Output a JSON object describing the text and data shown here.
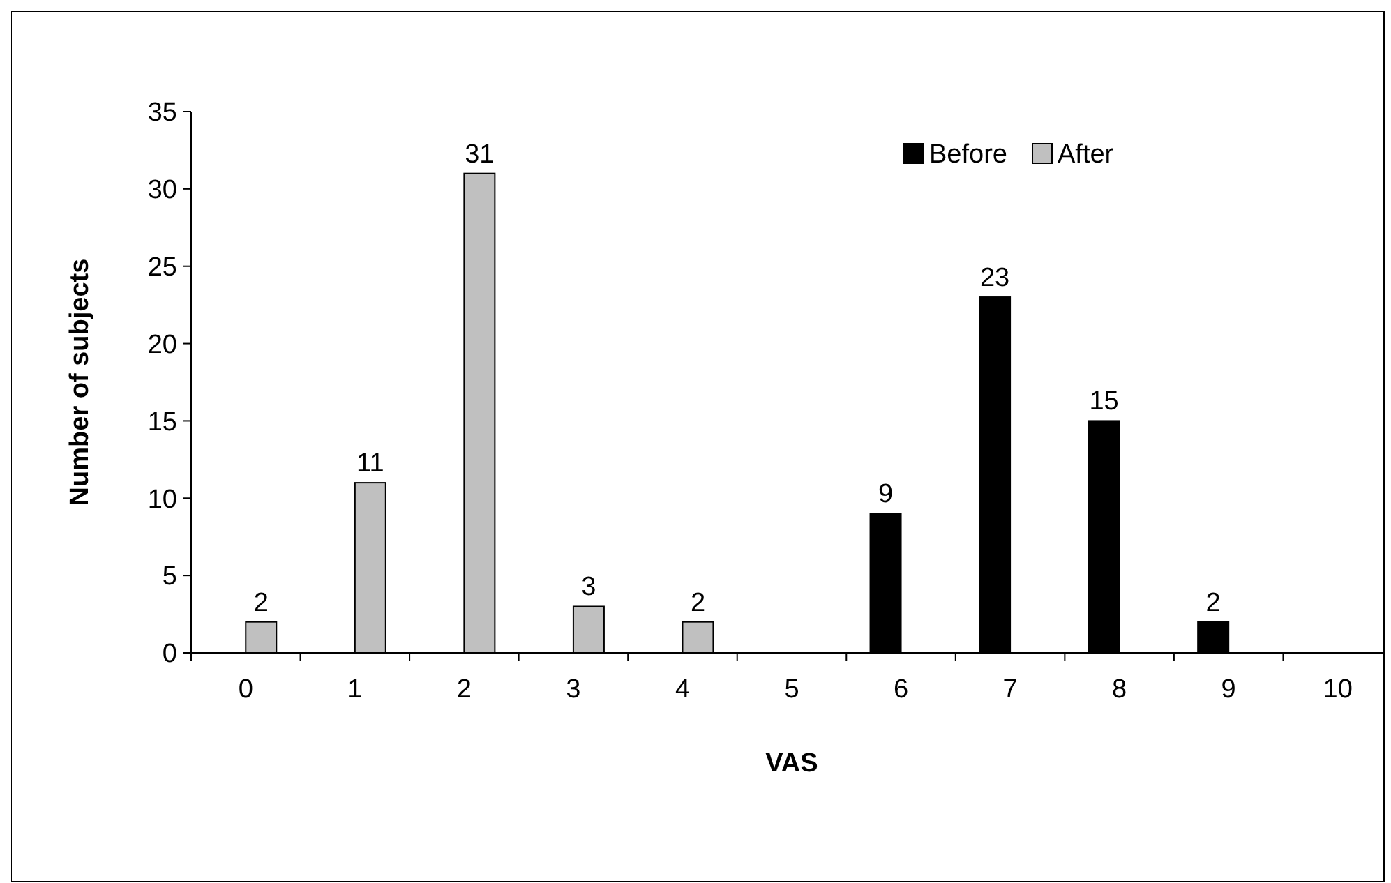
{
  "chart_data": {
    "type": "bar",
    "xlabel": "VAS",
    "ylabel": "Number of subjects",
    "categories": [
      "0",
      "1",
      "2",
      "3",
      "4",
      "5",
      "6",
      "7",
      "8",
      "9",
      "10"
    ],
    "series": [
      {
        "name": "Before",
        "color": "#000000",
        "values": [
          null,
          null,
          null,
          null,
          null,
          null,
          9,
          23,
          15,
          2,
          null
        ]
      },
      {
        "name": "After",
        "color": "#c0c0c0",
        "values": [
          2,
          11,
          31,
          3,
          2,
          null,
          null,
          null,
          null,
          null,
          null
        ]
      }
    ],
    "ylim": [
      0,
      35
    ],
    "yticks": [
      0,
      5,
      10,
      15,
      20,
      25,
      30,
      35
    ],
    "grid": false,
    "legend": "top right",
    "data_labels": true
  }
}
